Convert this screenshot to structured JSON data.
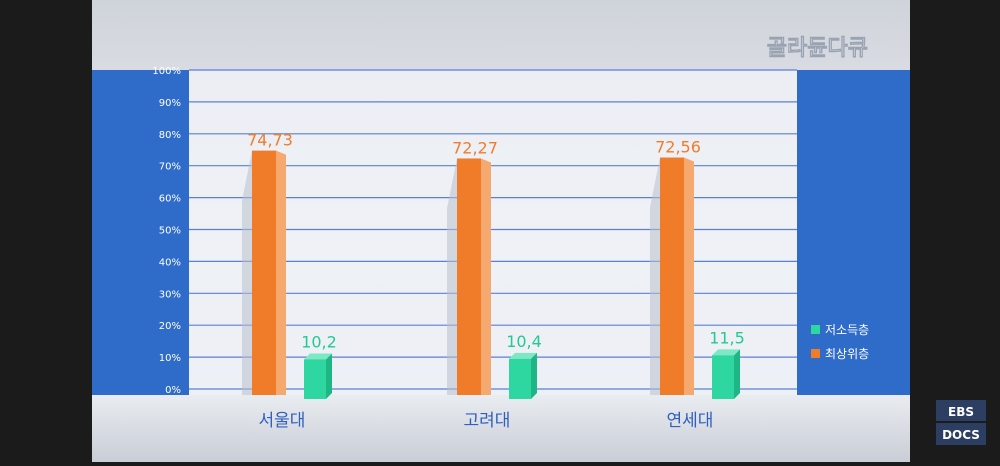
{
  "brand": {
    "program_logo": "골라듄다큐",
    "channel_logo_top": "EBS",
    "channel_logo_bottom": "DOCS"
  },
  "colors": {
    "frame_dark": "#1b1b1b",
    "panel_blue": "#2f6bc9",
    "grid_line": "#5b7fd6",
    "bar_orange": "#f07c2a",
    "bar_green": "#2ed6a0",
    "label_orange": "#f07c2a",
    "label_green": "#22c994",
    "category_text": "#2f5fbf",
    "axis_text": "#ffffff"
  },
  "chart_data": {
    "type": "bar",
    "categories": [
      "서울대",
      "고려대",
      "연세대"
    ],
    "series": [
      {
        "name": "최상위층",
        "values": [
          74.73,
          72.27,
          72.56
        ],
        "labels": [
          "74,73",
          "72,27",
          "72,56"
        ],
        "color": "#f07c2a"
      },
      {
        "name": "저소득층",
        "values": [
          10.2,
          10.4,
          11.5
        ],
        "labels": [
          "10,2",
          "10,4",
          "11,5"
        ],
        "color": "#2ed6a0"
      }
    ],
    "yticks": [
      "0%",
      "10%",
      "20%",
      "30%",
      "40%",
      "50%",
      "60%",
      "70%",
      "80%",
      "90%",
      "100%"
    ],
    "ylim": [
      0,
      100
    ],
    "grid": true,
    "legend": {
      "position": "right",
      "items": [
        {
          "label": "저소득층",
          "color": "#2ed6a0"
        },
        {
          "label": "최상위층",
          "color": "#f07c2a"
        }
      ]
    },
    "title": "",
    "xlabel": "",
    "ylabel": ""
  }
}
